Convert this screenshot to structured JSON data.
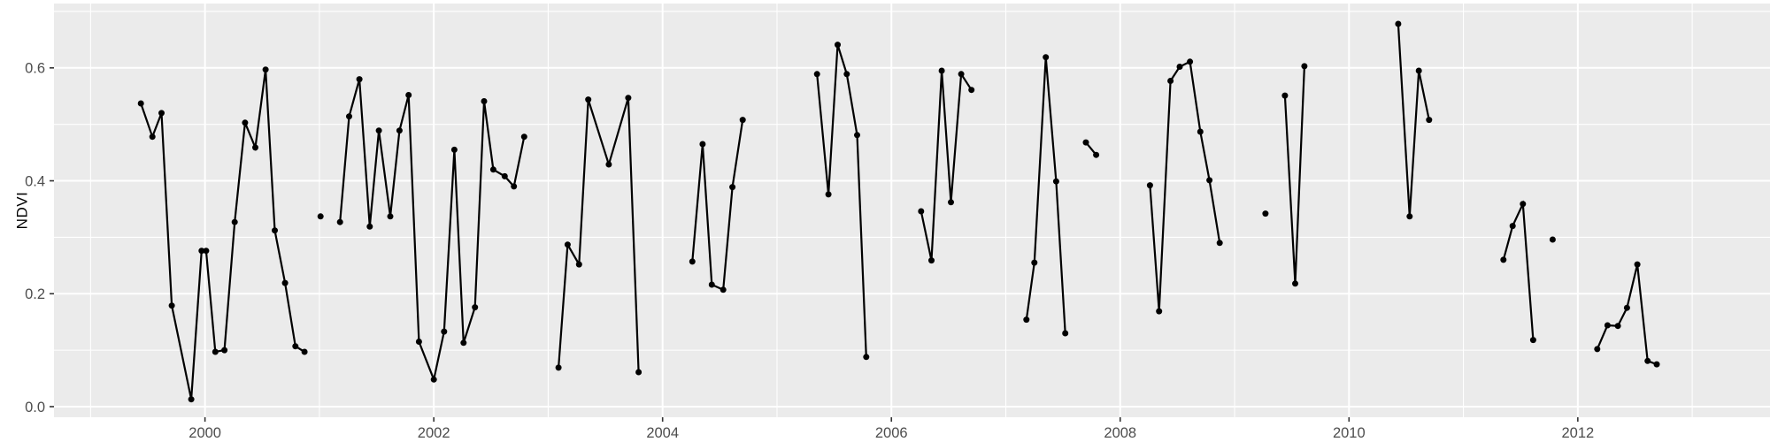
{
  "chart_data": {
    "type": "line",
    "title": "",
    "xlabel": "",
    "ylabel": "NDVI",
    "xlim": [
      1998.68,
      2013.68
    ],
    "ylim": [
      -0.0188,
      0.714
    ],
    "grid": {
      "y_major": [
        0.0,
        0.2,
        0.4,
        0.6
      ],
      "y_minor": [
        0.1,
        0.3,
        0.5,
        0.7
      ],
      "x_major": [
        2000,
        2002,
        2004,
        2006,
        2008,
        2010,
        2012
      ],
      "x_minor": [
        1999,
        2001,
        2003,
        2005,
        2007,
        2009,
        2011,
        2013
      ]
    },
    "y_tick_labels": [
      "0.0",
      "0.2",
      "0.4",
      "0.6"
    ],
    "x_tick_labels": [
      "2000",
      "2002",
      "2004",
      "2006",
      "2008",
      "2010",
      "2012"
    ],
    "legend_position": "none",
    "series_name": "NDVI",
    "segments": [
      [
        [
          1999.44,
          0.537
        ],
        [
          1999.54,
          0.478
        ],
        [
          1999.62,
          0.52
        ],
        [
          1999.71,
          0.179
        ],
        [
          1999.88,
          0.013
        ],
        [
          1999.97,
          0.276
        ],
        [
          2000.01,
          0.276
        ],
        [
          2000.09,
          0.097
        ],
        [
          2000.17,
          0.1
        ],
        [
          2000.26,
          0.327
        ],
        [
          2000.35,
          0.503
        ],
        [
          2000.44,
          0.459
        ],
        [
          2000.53,
          0.597
        ],
        [
          2000.61,
          0.312
        ],
        [
          2000.7,
          0.219
        ],
        [
          2000.79,
          0.107
        ],
        [
          2000.87,
          0.097
        ]
      ],
      [
        [
          2001.01,
          0.337
        ]
      ],
      [
        [
          2001.18,
          0.327
        ],
        [
          2001.26,
          0.514
        ],
        [
          2001.35,
          0.58
        ],
        [
          2001.44,
          0.319
        ],
        [
          2001.52,
          0.489
        ],
        [
          2001.62,
          0.337
        ],
        [
          2001.7,
          0.489
        ],
        [
          2001.78,
          0.552
        ],
        [
          2001.87,
          0.115
        ],
        [
          2002.0,
          0.048
        ],
        [
          2002.09,
          0.133
        ],
        [
          2002.18,
          0.455
        ],
        [
          2002.26,
          0.113
        ],
        [
          2002.36,
          0.176
        ],
        [
          2002.44,
          0.541
        ],
        [
          2002.52,
          0.42
        ],
        [
          2002.62,
          0.408
        ],
        [
          2002.7,
          0.39
        ],
        [
          2002.79,
          0.478
        ]
      ],
      [
        [
          2003.09,
          0.069
        ],
        [
          2003.17,
          0.287
        ],
        [
          2003.27,
          0.252
        ],
        [
          2003.35,
          0.544
        ],
        [
          2003.53,
          0.429
        ],
        [
          2003.7,
          0.547
        ],
        [
          2003.79,
          0.061
        ]
      ],
      [
        [
          2004.26,
          0.257
        ],
        [
          2004.35,
          0.465
        ],
        [
          2004.43,
          0.216
        ],
        [
          2004.53,
          0.207
        ],
        [
          2004.61,
          0.389
        ],
        [
          2004.7,
          0.508
        ]
      ],
      [
        [
          2005.35,
          0.589
        ],
        [
          2005.45,
          0.376
        ],
        [
          2005.53,
          0.641
        ],
        [
          2005.61,
          0.589
        ],
        [
          2005.7,
          0.481
        ],
        [
          2005.78,
          0.088
        ]
      ],
      [
        [
          2006.26,
          0.346
        ],
        [
          2006.35,
          0.259
        ],
        [
          2006.44,
          0.595
        ],
        [
          2006.52,
          0.362
        ],
        [
          2006.61,
          0.589
        ],
        [
          2006.7,
          0.561
        ]
      ],
      [
        [
          2007.18,
          0.154
        ],
        [
          2007.25,
          0.255
        ],
        [
          2007.35,
          0.619
        ],
        [
          2007.44,
          0.399
        ],
        [
          2007.52,
          0.13
        ]
      ],
      [
        [
          2007.7,
          0.468
        ],
        [
          2007.79,
          0.446
        ]
      ],
      [
        [
          2008.26,
          0.392
        ],
        [
          2008.34,
          0.169
        ],
        [
          2008.44,
          0.577
        ],
        [
          2008.52,
          0.602
        ],
        [
          2008.61,
          0.611
        ],
        [
          2008.7,
          0.487
        ],
        [
          2008.78,
          0.401
        ],
        [
          2008.87,
          0.29
        ]
      ],
      [
        [
          2009.27,
          0.342
        ]
      ],
      [
        [
          2009.44,
          0.551
        ],
        [
          2009.53,
          0.218
        ],
        [
          2009.61,
          0.603
        ]
      ],
      [
        [
          2010.43,
          0.678
        ],
        [
          2010.53,
          0.337
        ],
        [
          2010.61,
          0.595
        ],
        [
          2010.7,
          0.508
        ]
      ],
      [
        [
          2011.35,
          0.26
        ],
        [
          2011.43,
          0.32
        ],
        [
          2011.52,
          0.359
        ],
        [
          2011.61,
          0.118
        ]
      ],
      [
        [
          2011.78,
          0.296
        ]
      ],
      [
        [
          2012.17,
          0.102
        ],
        [
          2012.26,
          0.144
        ],
        [
          2012.35,
          0.143
        ],
        [
          2012.43,
          0.175
        ],
        [
          2012.52,
          0.252
        ],
        [
          2012.61,
          0.081
        ],
        [
          2012.69,
          0.075
        ]
      ]
    ]
  },
  "colors": {
    "panel_background": "#EBEBEB",
    "grid_line": "#FFFFFF",
    "series": "#000000",
    "tick_mark": "#333333",
    "tick_label": "#4D4D4D",
    "axis_title": "#000000",
    "outer_background": "#FFFFFF"
  }
}
